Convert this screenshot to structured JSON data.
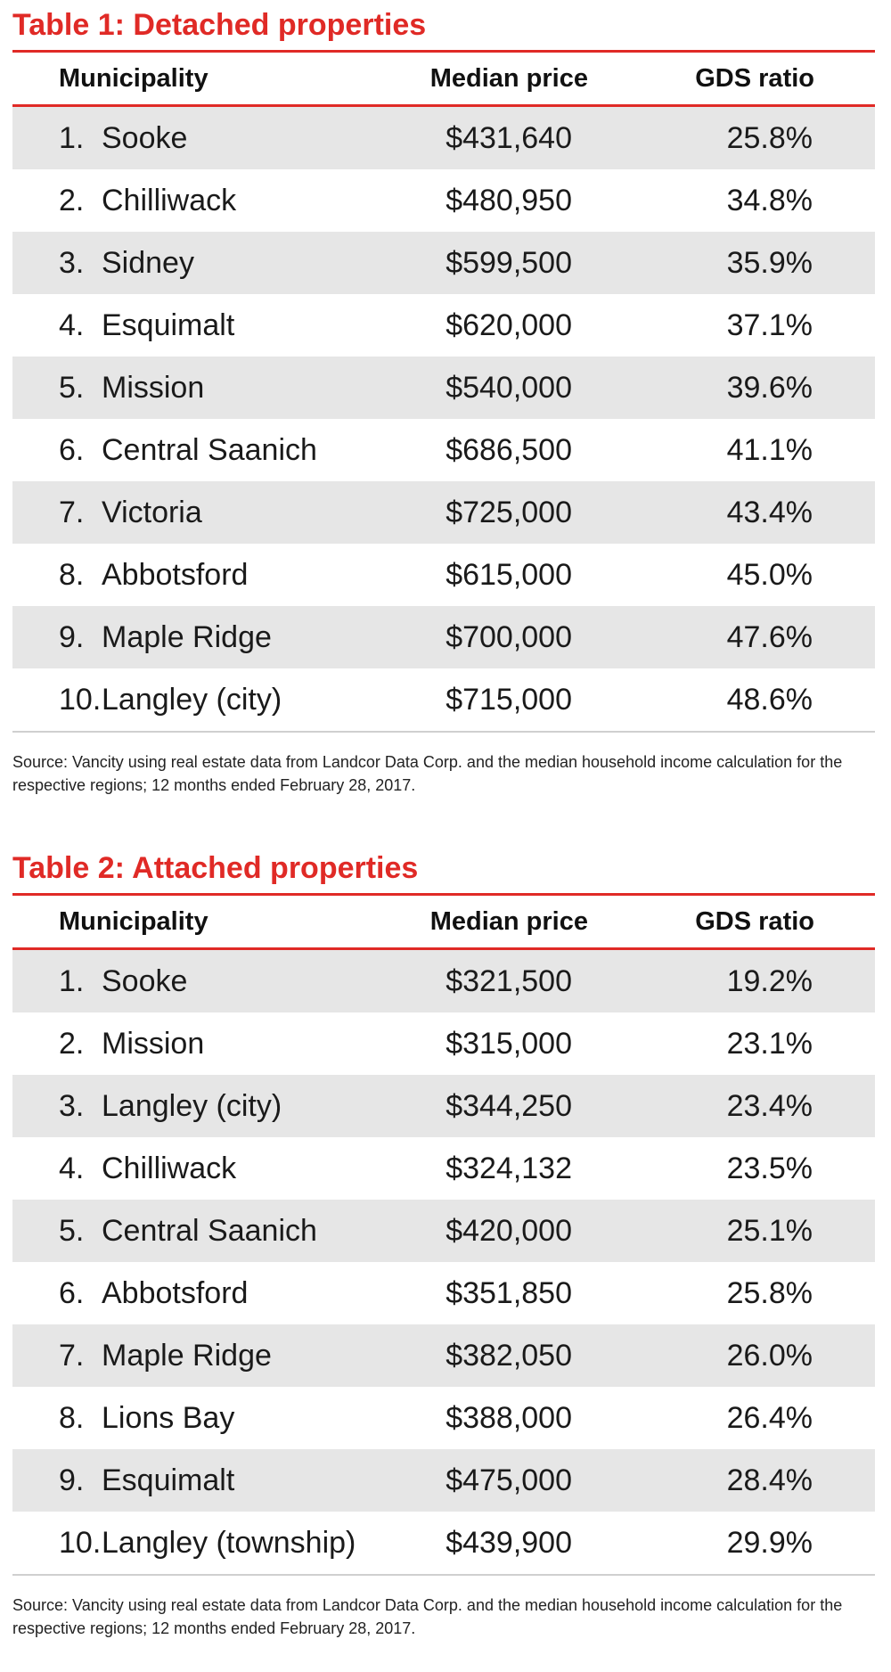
{
  "table1": {
    "title": "Table 1: Detached properties",
    "headers": {
      "municipality": "Municipality",
      "price": "Median price",
      "gds": "GDS ratio"
    },
    "rows": [
      {
        "rank": "1.",
        "name": "Sooke",
        "price": "$431,640",
        "gds": "25.8%"
      },
      {
        "rank": "2.",
        "name": "Chilliwack",
        "price": "$480,950",
        "gds": "34.8%"
      },
      {
        "rank": "3.",
        "name": "Sidney",
        "price": "$599,500",
        "gds": "35.9%"
      },
      {
        "rank": "4.",
        "name": "Esquimalt",
        "price": "$620,000",
        "gds": "37.1%"
      },
      {
        "rank": "5.",
        "name": "Mission",
        "price": "$540,000",
        "gds": "39.6%"
      },
      {
        "rank": "6.",
        "name": "Central Saanich",
        "price": "$686,500",
        "gds": "41.1%"
      },
      {
        "rank": "7.",
        "name": "Victoria",
        "price": "$725,000",
        "gds": "43.4%"
      },
      {
        "rank": "8.",
        "name": "Abbotsford",
        "price": "$615,000",
        "gds": "45.0%"
      },
      {
        "rank": "9.",
        "name": "Maple Ridge",
        "price": "$700,000",
        "gds": "47.6%"
      },
      {
        "rank": "10.",
        "name": "Langley (city)",
        "price": "$715,000",
        "gds": "48.6%"
      }
    ],
    "source": "Source: Vancity using real estate data from Landcor Data Corp. and the median household income calculation for the respective regions; 12 months ended February 28, 2017."
  },
  "table2": {
    "title": "Table 2: Attached properties",
    "headers": {
      "municipality": "Municipality",
      "price": "Median price",
      "gds": "GDS ratio"
    },
    "rows": [
      {
        "rank": "1.",
        "name": "Sooke",
        "price": "$321,500",
        "gds": "19.2%"
      },
      {
        "rank": "2.",
        "name": "Mission",
        "price": "$315,000",
        "gds": "23.1%"
      },
      {
        "rank": "3.",
        "name": "Langley (city)",
        "price": "$344,250",
        "gds": "23.4%"
      },
      {
        "rank": "4.",
        "name": "Chilliwack",
        "price": "$324,132",
        "gds": "23.5%"
      },
      {
        "rank": "5.",
        "name": "Central Saanich",
        "price": "$420,000",
        "gds": "25.1%"
      },
      {
        "rank": "6.",
        "name": "Abbotsford",
        "price": "$351,850",
        "gds": "25.8%"
      },
      {
        "rank": "7.",
        "name": "Maple Ridge",
        "price": "$382,050",
        "gds": "26.0%"
      },
      {
        "rank": "8.",
        "name": "Lions Bay",
        "price": "$388,000",
        "gds": "26.4%"
      },
      {
        "rank": "9.",
        "name": "Esquimalt",
        "price": "$475,000",
        "gds": "28.4%"
      },
      {
        "rank": "10.",
        "name": "Langley (township)",
        "price": "$439,900",
        "gds": "29.9%"
      }
    ],
    "source": "Source: Vancity using real estate data from Landcor Data Corp. and the median household income calculation for the respective regions; 12 months ended February 28, 2017."
  },
  "colors": {
    "accent": "#e02a26",
    "row_shade": "#e6e6e6",
    "text": "#1a1a1a"
  }
}
